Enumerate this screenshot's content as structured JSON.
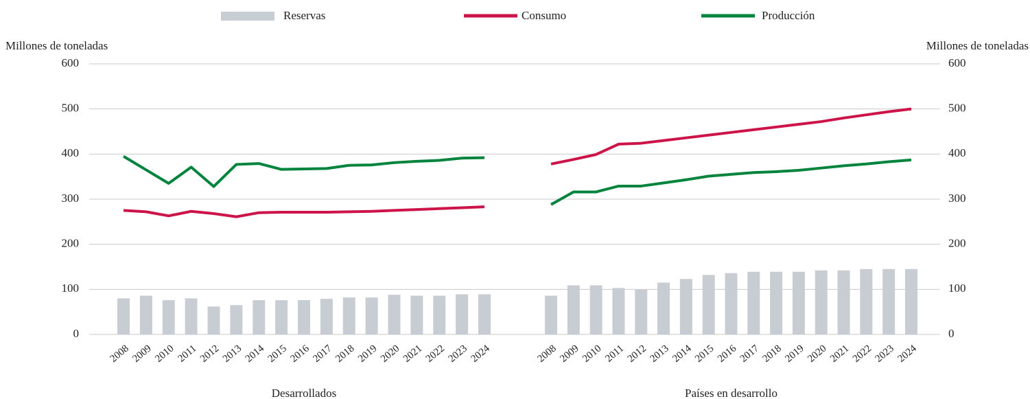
{
  "chart_data": {
    "type": "combo",
    "ylabel": "Millones de toneladas",
    "ylim": [
      0,
      600
    ],
    "yticks": [
      0,
      100,
      200,
      300,
      400,
      500,
      600
    ],
    "grid": true,
    "series": [
      {
        "name": "Reservas",
        "color": "#c8cdd3",
        "kind": "bar"
      },
      {
        "name": "Consumo",
        "color": "#cc1448",
        "kind": "line"
      },
      {
        "name": "Producción",
        "color": "#00843d",
        "kind": "line"
      }
    ],
    "panels": [
      {
        "label": "Desarrollados",
        "categories": [
          "2008",
          "2009",
          "2010",
          "2011",
          "2012",
          "2013",
          "2014",
          "2015",
          "2016",
          "2017",
          "2018",
          "2019",
          "2020",
          "2021",
          "2022",
          "2023",
          "2024"
        ],
        "series_values": [
          [
            80,
            86,
            76,
            80,
            62,
            65,
            76,
            76,
            76,
            79,
            82,
            82,
            88,
            86,
            86,
            89,
            89
          ],
          [
            275,
            272,
            263,
            273,
            268,
            261,
            270,
            271,
            271,
            271,
            272,
            273,
            275,
            277,
            279,
            281,
            283
          ],
          [
            395,
            365,
            335,
            371,
            328,
            377,
            379,
            366,
            367,
            368,
            375,
            376,
            381,
            384,
            386,
            391,
            392
          ]
        ]
      },
      {
        "label": "Países en desarrollo",
        "categories": [
          "2008",
          "2009",
          "2010",
          "2011",
          "2012",
          "2013",
          "2014",
          "2015",
          "2016",
          "2017",
          "2018",
          "2019",
          "2020",
          "2021",
          "2022",
          "2023",
          "2024"
        ],
        "series_values": [
          [
            86,
            109,
            109,
            103,
            99,
            115,
            123,
            132,
            136,
            139,
            139,
            139,
            142,
            142,
            145,
            145,
            145
          ],
          [
            378,
            388,
            399,
            422,
            424,
            430,
            436,
            442,
            448,
            454,
            460,
            466,
            472,
            480,
            487,
            494,
            500
          ],
          [
            288,
            316,
            316,
            329,
            329,
            336,
            343,
            351,
            355,
            359,
            361,
            364,
            369,
            374,
            378,
            383,
            387
          ]
        ]
      }
    ]
  }
}
